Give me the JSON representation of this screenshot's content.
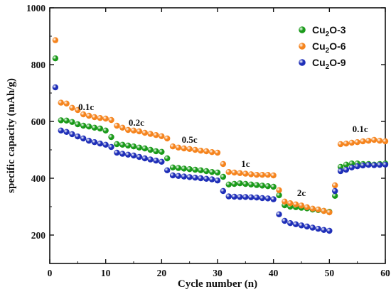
{
  "chart_data": {
    "type": "scatter",
    "xlabel": "Cycle number (n)",
    "ylabel": "specific capacity (mAh/g)",
    "xlim": [
      0,
      60
    ],
    "ylim": [
      100,
      1000
    ],
    "xticks": [
      0,
      10,
      20,
      30,
      40,
      50,
      60
    ],
    "yticks": [
      200,
      400,
      600,
      800,
      1000
    ],
    "grid": false,
    "legend": {
      "position": "top-right"
    },
    "series": [
      {
        "name": "Cu2O-3",
        "name_parts": {
          "base": "Cu",
          "sub": "2",
          "rest": "O-3"
        },
        "color": "#1a9a1a",
        "x": [
          1,
          2,
          3,
          4,
          5,
          6,
          7,
          8,
          9,
          10,
          11,
          12,
          13,
          14,
          15,
          16,
          17,
          18,
          19,
          20,
          21,
          22,
          23,
          24,
          25,
          26,
          27,
          28,
          29,
          30,
          31,
          32,
          33,
          34,
          35,
          36,
          37,
          38,
          39,
          40,
          41,
          42,
          43,
          44,
          45,
          46,
          47,
          48,
          49,
          50,
          51,
          52,
          53,
          54,
          55,
          56,
          57,
          58,
          59,
          60
        ],
        "y": [
          822,
          604,
          603,
          598,
          590,
          585,
          582,
          578,
          575,
          568,
          545,
          520,
          518,
          515,
          512,
          508,
          505,
          500,
          495,
          493,
          470,
          438,
          436,
          434,
          432,
          430,
          428,
          425,
          422,
          420,
          405,
          378,
          380,
          382,
          380,
          378,
          376,
          374,
          372,
          370,
          340,
          305,
          300,
          298,
          296,
          294,
          290,
          288,
          285,
          282,
          338,
          440,
          448,
          452,
          452,
          450,
          450,
          448,
          450,
          452
        ]
      },
      {
        "name": "Cu2O-6",
        "name_parts": {
          "base": "Cu",
          "sub": "2",
          "rest": "O-6"
        },
        "color": "#f5841e",
        "x": [
          1,
          2,
          3,
          4,
          5,
          6,
          7,
          8,
          9,
          10,
          11,
          12,
          13,
          14,
          15,
          16,
          17,
          18,
          19,
          20,
          21,
          22,
          23,
          24,
          25,
          26,
          27,
          28,
          29,
          30,
          31,
          32,
          33,
          34,
          35,
          36,
          37,
          38,
          39,
          40,
          41,
          42,
          43,
          44,
          45,
          46,
          47,
          48,
          49,
          50,
          51,
          52,
          53,
          54,
          55,
          56,
          57,
          58,
          59,
          60
        ],
        "y": [
          886,
          666,
          663,
          648,
          640,
          625,
          620,
          615,
          612,
          610,
          605,
          585,
          578,
          570,
          568,
          565,
          560,
          556,
          552,
          548,
          540,
          512,
          508,
          505,
          503,
          500,
          497,
          495,
          492,
          490,
          450,
          422,
          420,
          418,
          416,
          414,
          412,
          412,
          412,
          410,
          358,
          318,
          312,
          308,
          304,
          298,
          293,
          290,
          285,
          280,
          375,
          520,
          522,
          525,
          527,
          530,
          532,
          535,
          532,
          530
        ]
      },
      {
        "name": "Cu2O-9",
        "name_parts": {
          "base": "Cu",
          "sub": "2",
          "rest": "O-9"
        },
        "color": "#1f2fb8",
        "x": [
          1,
          2,
          3,
          4,
          5,
          6,
          7,
          8,
          9,
          10,
          11,
          12,
          13,
          14,
          15,
          16,
          17,
          18,
          19,
          20,
          21,
          22,
          23,
          24,
          25,
          26,
          27,
          28,
          29,
          30,
          31,
          32,
          33,
          34,
          35,
          36,
          37,
          38,
          39,
          40,
          41,
          42,
          43,
          44,
          45,
          46,
          47,
          48,
          49,
          50,
          51,
          52,
          53,
          54,
          55,
          56,
          57,
          58,
          59,
          60
        ],
        "y": [
          720,
          568,
          563,
          555,
          547,
          540,
          532,
          527,
          522,
          518,
          510,
          490,
          486,
          483,
          480,
          475,
          470,
          466,
          462,
          458,
          428,
          410,
          408,
          406,
          404,
          402,
          400,
          398,
          396,
          392,
          355,
          336,
          335,
          334,
          334,
          333,
          332,
          330,
          329,
          326,
          273,
          250,
          242,
          238,
          234,
          230,
          226,
          222,
          218,
          215,
          355,
          425,
          430,
          438,
          442,
          445,
          447,
          446,
          447,
          448
        ]
      }
    ],
    "annotations": [
      {
        "text": "0.1c",
        "x": 6.5,
        "y": 640
      },
      {
        "text": "0.2c",
        "x": 15.5,
        "y": 585
      },
      {
        "text": "0.5c",
        "x": 25,
        "y": 525
      },
      {
        "text": "1c",
        "x": 35,
        "y": 440
      },
      {
        "text": "2c",
        "x": 45,
        "y": 338
      },
      {
        "text": "0.1c",
        "x": 55.5,
        "y": 562
      }
    ]
  }
}
